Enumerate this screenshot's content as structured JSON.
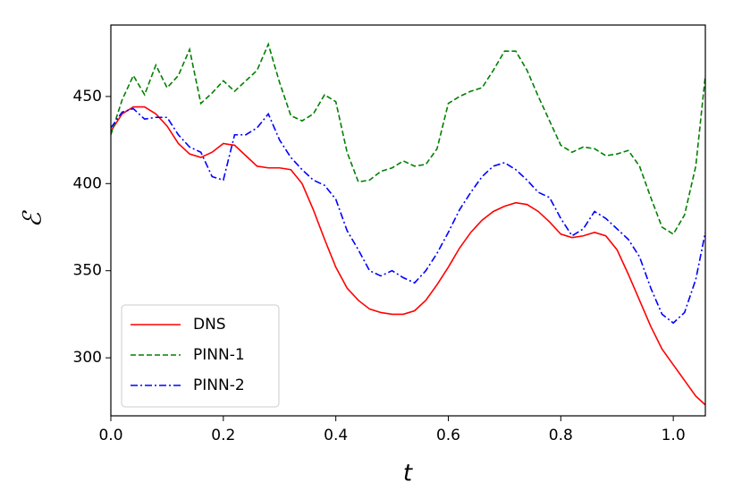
{
  "chart_data": {
    "type": "line",
    "x_label": "t",
    "y_label": "ℰ",
    "x": [
      0,
      0.02,
      0.04,
      0.06,
      0.08,
      0.1,
      0.12,
      0.14,
      0.16,
      0.18,
      0.2,
      0.22,
      0.24,
      0.26,
      0.28,
      0.3,
      0.32,
      0.34,
      0.36,
      0.38,
      0.4,
      0.42,
      0.44,
      0.46,
      0.48,
      0.5,
      0.52,
      0.54,
      0.56,
      0.58,
      0.6,
      0.62,
      0.64,
      0.66,
      0.68,
      0.7,
      0.72,
      0.74,
      0.76,
      0.78,
      0.8,
      0.82,
      0.84,
      0.86,
      0.88,
      0.9,
      0.92,
      0.94,
      0.96,
      0.98,
      1.0,
      1.02,
      1.04,
      1.057
    ],
    "series": [
      {
        "name": "DNS",
        "color": "#ff0000",
        "dash": "solid",
        "values": [
          430,
          440,
          444,
          444,
          440,
          433,
          423,
          417,
          415,
          418,
          423,
          422,
          416,
          410,
          409,
          409,
          408,
          400,
          385,
          368,
          352,
          340,
          333,
          328,
          326,
          325,
          325,
          327,
          333,
          342,
          352,
          363,
          372,
          379,
          384,
          387,
          389,
          388,
          384,
          378,
          371,
          369,
          370,
          372,
          370,
          362,
          348,
          333,
          318,
          305,
          296,
          287,
          278,
          273
        ]
      },
      {
        "name": "PINN-1",
        "color": "#008000",
        "dash": "dashed",
        "values": [
          428,
          448,
          462,
          451,
          468,
          455,
          462,
          477,
          446,
          452,
          459,
          453,
          459,
          465,
          480,
          458,
          439,
          436,
          440,
          451,
          447,
          418,
          401,
          402,
          407,
          409,
          413,
          410,
          411,
          420,
          446,
          450,
          453,
          455,
          465,
          476,
          476,
          465,
          450,
          436,
          422,
          418,
          421,
          420,
          416,
          417,
          419,
          410,
          392,
          375,
          371,
          382,
          410,
          462
        ]
      },
      {
        "name": "PINN-2",
        "color": "#0000ff",
        "dash": "dashdot",
        "values": [
          432,
          441,
          443,
          437,
          438,
          438,
          428,
          421,
          418,
          404,
          402,
          428,
          428,
          432,
          440,
          425,
          415,
          408,
          402,
          399,
          391,
          373,
          362,
          350,
          347,
          350,
          346,
          343,
          350,
          360,
          372,
          385,
          395,
          404,
          410,
          412,
          408,
          402,
          395,
          392,
          380,
          370,
          374,
          384,
          380,
          374,
          368,
          358,
          340,
          325,
          320,
          326,
          345,
          372
        ]
      }
    ],
    "xlim": [
      0,
      1.057
    ],
    "ylim": [
      266.7,
      491
    ],
    "xticks": [
      {
        "value": 0,
        "label": "0.0"
      },
      0.2,
      0.4,
      0.6,
      0.8,
      {
        "value": 1,
        "label": "1.0"
      }
    ],
    "yticks": [
      300,
      350,
      400,
      450
    ],
    "legend": "lower left"
  }
}
